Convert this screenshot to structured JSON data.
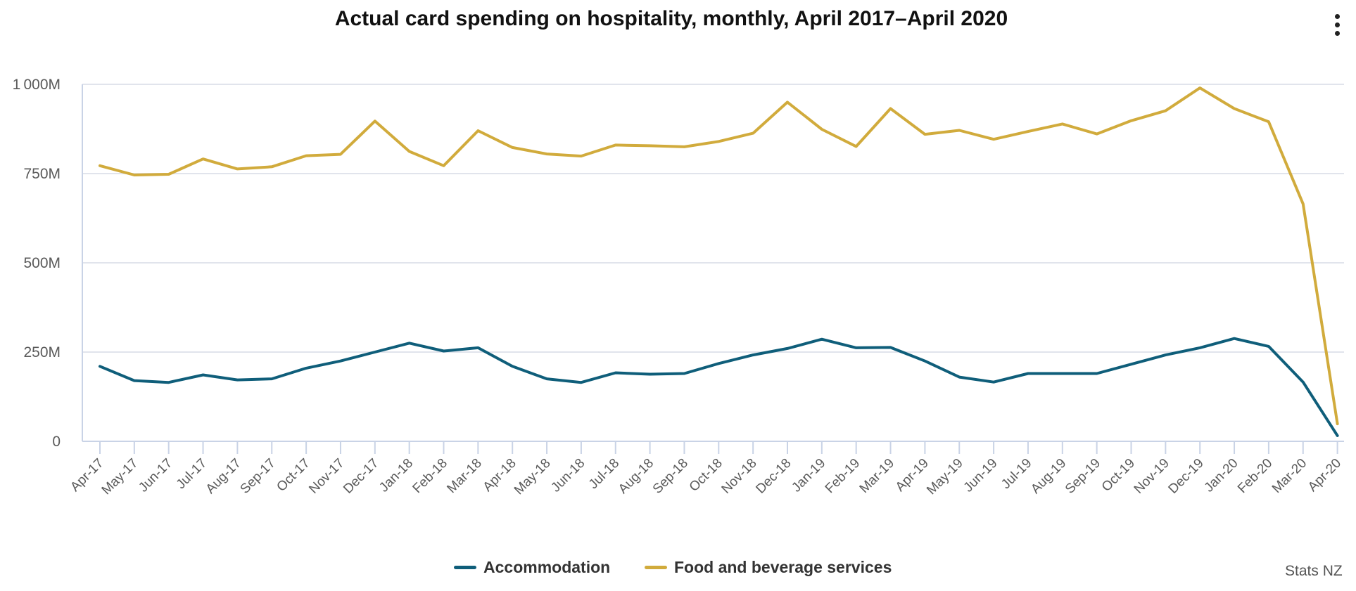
{
  "header": {
    "title": "Actual card spending on hospitality, monthly, April 2017–April 2020"
  },
  "menu": {
    "icon": "more-vertical-icon"
  },
  "credit": "Stats NZ",
  "colors": {
    "accommodation": "#0f5e7a",
    "food": "#d1ab3c",
    "grid": "#e1e4ec",
    "axis": "#c9d3e6"
  },
  "chart_data": {
    "type": "line",
    "title": "Actual card spending on hospitality, monthly, April 2017–April 2020",
    "xlabel": "",
    "ylabel": "",
    "ylim": [
      0,
      1000
    ],
    "y_unit": "M",
    "y_ticks": [
      0,
      250,
      500,
      750,
      1000
    ],
    "y_tick_labels": [
      "0",
      "250M",
      "500M",
      "750M",
      "1 000M"
    ],
    "grid": true,
    "legend_position": "bottom-center",
    "categories": [
      "Apr-17",
      "May-17",
      "Jun-17",
      "Jul-17",
      "Aug-17",
      "Sep-17",
      "Oct-17",
      "Nov-17",
      "Dec-17",
      "Jan-18",
      "Feb-18",
      "Mar-18",
      "Apr-18",
      "May-18",
      "Jun-18",
      "Jul-18",
      "Aug-18",
      "Sep-18",
      "Oct-18",
      "Nov-18",
      "Dec-18",
      "Jan-19",
      "Feb-19",
      "Mar-19",
      "Apr-19",
      "May-19",
      "Jun-19",
      "Jul-19",
      "Aug-19",
      "Sep-19",
      "Oct-19",
      "Nov-19",
      "Dec-19",
      "Jan-20",
      "Feb-20",
      "Mar-20",
      "Apr-20"
    ],
    "series": [
      {
        "name": "Accommodation",
        "color": "#0f5e7a",
        "values": [
          210,
          170,
          165,
          186,
          172,
          175,
          205,
          225,
          250,
          275,
          253,
          262,
          210,
          175,
          165,
          192,
          188,
          190,
          218,
          242,
          260,
          286,
          262,
          263,
          225,
          180,
          166,
          190,
          190,
          190,
          216,
          242,
          262,
          288,
          266,
          166,
          16
        ]
      },
      {
        "name": "Food and beverage services",
        "color": "#d1ab3c",
        "values": [
          772,
          746,
          748,
          791,
          763,
          769,
          800,
          804,
          897,
          812,
          772,
          870,
          823,
          805,
          799,
          830,
          828,
          825,
          840,
          863,
          950,
          874,
          826,
          932,
          860,
          871,
          846,
          868,
          889,
          861,
          898,
          926,
          990,
          932,
          895,
          665,
          49
        ]
      }
    ]
  }
}
